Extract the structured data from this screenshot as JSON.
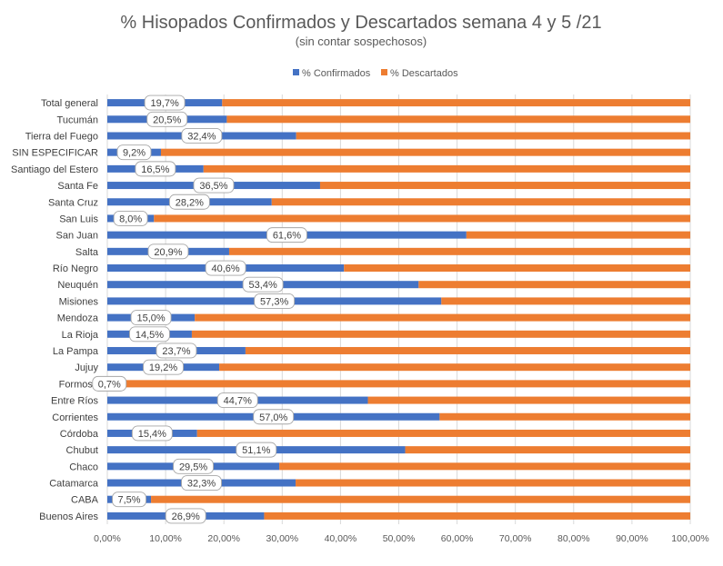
{
  "chart_data": {
    "type": "bar",
    "orientation": "horizontal",
    "stacked": "percent",
    "title": "% Hisopados Confirmados y Descartados semana 4 y 5 /21",
    "subtitle": "(sin contar sospechosos)",
    "categories": [
      "Total general",
      "Tucumán",
      "Tierra del Fuego",
      "SIN ESPECIFICAR",
      "Santiago del Estero",
      "Santa Fe",
      "Santa Cruz",
      "San Luis",
      "San Juan",
      "Salta",
      "Río Negro",
      "Neuquén",
      "Misiones",
      "Mendoza",
      "La Rioja",
      "La Pampa",
      "Jujuy",
      "Formosa",
      "Entre Ríos",
      "Corrientes",
      "Córdoba",
      "Chubut",
      "Chaco",
      "Catamarca",
      "CABA",
      "Buenos Aires"
    ],
    "series": [
      {
        "name": "% Confirmados",
        "color": "#4472C4",
        "values": [
          19.7,
          20.5,
          32.4,
          9.2,
          16.5,
          36.5,
          28.2,
          8.0,
          61.6,
          20.9,
          40.6,
          53.4,
          57.3,
          15.0,
          14.5,
          23.7,
          19.2,
          0.7,
          44.7,
          57.0,
          15.4,
          51.1,
          29.5,
          32.3,
          7.5,
          26.9
        ]
      },
      {
        "name": "% Descartados",
        "color": "#ED7D31",
        "values": [
          80.3,
          79.5,
          67.6,
          90.8,
          83.5,
          63.5,
          71.8,
          92.0,
          38.4,
          79.1,
          59.4,
          46.6,
          42.7,
          85.0,
          85.5,
          76.3,
          80.8,
          99.3,
          55.3,
          43.0,
          84.6,
          48.9,
          70.5,
          67.7,
          92.5,
          73.1
        ]
      }
    ],
    "data_labels": [
      "19,7%",
      "20,5%",
      "32,4%",
      "9,2%",
      "16,5%",
      "36,5%",
      "28,2%",
      "8,0%",
      "61,6%",
      "20,9%",
      "40,6%",
      "53,4%",
      "57,3%",
      "15,0%",
      "14,5%",
      "23,7%",
      "19,2%",
      "0,7%",
      "44,7%",
      "57,0%",
      "15,4%",
      "51,1%",
      "29,5%",
      "32,3%",
      "7,5%",
      "26,9%"
    ],
    "x_tick_labels": [
      "0,00%",
      "10,00%",
      "20,00%",
      "30,00%",
      "40,00%",
      "50,00%",
      "60,00%",
      "70,00%",
      "80,00%",
      "90,00%",
      "100,00%"
    ],
    "xlim": [
      0,
      100
    ],
    "legend_position": "top-center",
    "grid": true
  }
}
